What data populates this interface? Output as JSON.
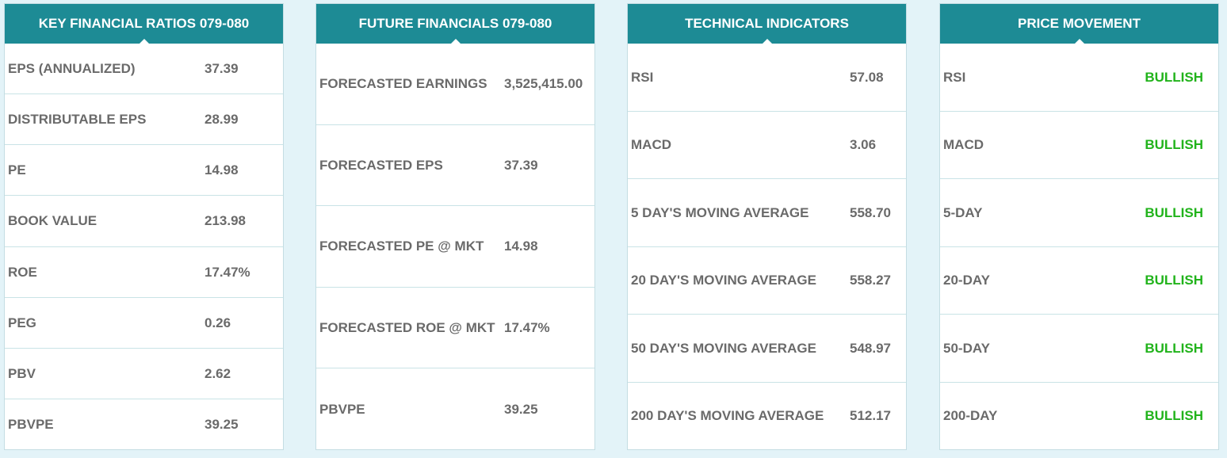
{
  "cards": [
    {
      "title": "KEY FINANCIAL RATIOS 079-080",
      "rows": [
        {
          "label": "EPS (ANNUALIZED)",
          "value": "37.39"
        },
        {
          "label": "DISTRIBUTABLE EPS",
          "value": "28.99"
        },
        {
          "label": "PE",
          "value": "14.98"
        },
        {
          "label": "BOOK VALUE",
          "value": "213.98"
        },
        {
          "label": "ROE",
          "value": "17.47%"
        },
        {
          "label": "PEG",
          "value": "0.26"
        },
        {
          "label": "PBV",
          "value": "2.62"
        },
        {
          "label": "PBVPE",
          "value": "39.25"
        }
      ]
    },
    {
      "title": "FUTURE FINANCIALS 079-080",
      "rows": [
        {
          "label": "FORECASTED EARNINGS",
          "value": "3,525,415.00"
        },
        {
          "label": "FORECASTED EPS",
          "value": "37.39"
        },
        {
          "label": "FORECASTED PE @ MKT",
          "value": "14.98"
        },
        {
          "label": "FORECASTED ROE @ MKT",
          "value": "17.47%"
        },
        {
          "label": "PBVPE",
          "value": "39.25"
        }
      ]
    },
    {
      "title": "TECHNICAL INDICATORS",
      "rows": [
        {
          "label": "RSI",
          "value": "57.08"
        },
        {
          "label": "MACD",
          "value": "3.06"
        },
        {
          "label": "5 DAY'S MOVING AVERAGE",
          "value": "558.70"
        },
        {
          "label": "20 DAY'S MOVING AVERAGE",
          "value": "558.27"
        },
        {
          "label": "50 DAY'S MOVING AVERAGE",
          "value": "548.97"
        },
        {
          "label": "200 DAY'S MOVING AVERAGE",
          "value": "512.17"
        }
      ]
    },
    {
      "title": "PRICE MOVEMENT",
      "rows": [
        {
          "label": "RSI",
          "value": "BULLISH"
        },
        {
          "label": "MACD",
          "value": "BULLISH"
        },
        {
          "label": "5-DAY",
          "value": "BULLISH"
        },
        {
          "label": "20-DAY",
          "value": "BULLISH"
        },
        {
          "label": "50-DAY",
          "value": "BULLISH"
        },
        {
          "label": "200-DAY",
          "value": "BULLISH"
        }
      ]
    }
  ],
  "colors": {
    "header_bg": "#1d8b95",
    "bullish": "#21b31b",
    "text": "#6a6a6a",
    "page_bg": "#e3f3f8"
  }
}
